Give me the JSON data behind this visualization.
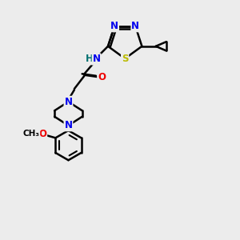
{
  "background_color": "#ececec",
  "bond_color": "#000000",
  "atom_colors": {
    "N": "#0000ee",
    "O": "#ee0000",
    "S": "#bbbb00",
    "H": "#007070",
    "C": "#000000"
  },
  "figsize": [
    3.0,
    3.0
  ],
  "dpi": 100
}
